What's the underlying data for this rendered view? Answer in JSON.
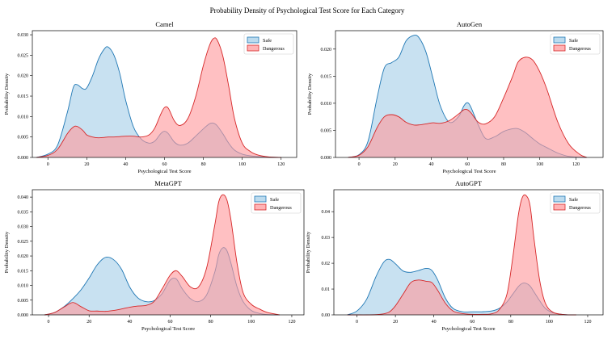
{
  "figure": {
    "title": "Probability Density of Psychological Test Score for Each Category",
    "colors": {
      "safe": "#1f77b4",
      "safe_fill": "#a6cfe8",
      "dangerous": "#d62728",
      "dangerous_fill": "#ff9a9c"
    }
  },
  "chart_data": [
    {
      "type": "area",
      "title": "Camel",
      "xlabel": "Psychological Test Score",
      "ylabel": "Probability Density",
      "xlim": [
        -8,
        128
      ],
      "ylim": [
        0,
        0.031
      ],
      "xticks": [
        0,
        20,
        40,
        60,
        80,
        100,
        120
      ],
      "yticks": [
        0.0,
        0.005,
        0.01,
        0.015,
        0.02,
        0.025,
        0.03
      ],
      "ytick_labels": [
        "0.000",
        "0.005",
        "0.010",
        "0.015",
        "0.020",
        "0.025",
        "0.030"
      ],
      "legend": [
        "Safe",
        "Dangerous"
      ],
      "legend_loc": "top-right",
      "x": [
        -6,
        0,
        5,
        10,
        13,
        15,
        18,
        20,
        23,
        26,
        29,
        31,
        34,
        37,
        40,
        44,
        48,
        52,
        55,
        58,
        60,
        62,
        65,
        68,
        72,
        76,
        80,
        83,
        85,
        87,
        90,
        93,
        96,
        100,
        104,
        108,
        114,
        120
      ],
      "series": [
        {
          "name": "Safe",
          "values": [
            0,
            0.0008,
            0.003,
            0.011,
            0.017,
            0.0178,
            0.0168,
            0.017,
            0.02,
            0.024,
            0.0265,
            0.027,
            0.025,
            0.0205,
            0.014,
            0.0075,
            0.0045,
            0.0035,
            0.004,
            0.0058,
            0.0064,
            0.0058,
            0.0038,
            0.003,
            0.0035,
            0.0052,
            0.007,
            0.0082,
            0.0084,
            0.0078,
            0.0058,
            0.0035,
            0.0018,
            0.0008,
            0.0004,
            0.0002,
            5e-05,
            0
          ]
        },
        {
          "name": "Dangerous",
          "values": [
            0,
            0.0005,
            0.002,
            0.0058,
            0.0074,
            0.0076,
            0.0066,
            0.0055,
            0.005,
            0.0048,
            0.0049,
            0.005,
            0.005,
            0.0051,
            0.0052,
            0.0052,
            0.005,
            0.0055,
            0.0072,
            0.0105,
            0.0122,
            0.012,
            0.009,
            0.0078,
            0.0095,
            0.0148,
            0.0225,
            0.0272,
            0.029,
            0.0288,
            0.0248,
            0.0175,
            0.0095,
            0.0035,
            0.0015,
            0.0006,
            0.0001,
            0
          ]
        }
      ]
    },
    {
      "type": "area",
      "title": "AutoGen",
      "xlabel": "Psychological Test Score",
      "ylabel": "Probability Density",
      "xlim": [
        -13,
        135
      ],
      "ylim": [
        0,
        0.0234
      ],
      "xticks": [
        0,
        20,
        40,
        60,
        80,
        100,
        120
      ],
      "yticks": [
        0.0,
        0.005,
        0.01,
        0.015,
        0.02
      ],
      "ytick_labels": [
        "0.000",
        "0.005",
        "0.010",
        "0.015",
        "0.020"
      ],
      "legend": [
        "Safe",
        "Dangerous"
      ],
      "legend_loc": "top-right",
      "x": [
        -6,
        0,
        5,
        10,
        14,
        18,
        22,
        26,
        30,
        33,
        37,
        41,
        45,
        50,
        55,
        58,
        60,
        62,
        66,
        70,
        75,
        80,
        85,
        88,
        92,
        96,
        100,
        104,
        110,
        116,
        122,
        126
      ],
      "series": [
        {
          "name": "Safe",
          "values": [
            0,
            0.0005,
            0.003,
            0.011,
            0.0165,
            0.0175,
            0.0185,
            0.0215,
            0.0225,
            0.0222,
            0.0195,
            0.0145,
            0.0095,
            0.0065,
            0.0075,
            0.0095,
            0.0101,
            0.0092,
            0.006,
            0.0035,
            0.0038,
            0.0048,
            0.0053,
            0.0053,
            0.0046,
            0.0035,
            0.0025,
            0.0018,
            0.0008,
            0.0002,
            5e-05,
            0
          ]
        },
        {
          "name": "Dangerous",
          "values": [
            0,
            0.0004,
            0.002,
            0.0055,
            0.0075,
            0.0079,
            0.0075,
            0.0065,
            0.006,
            0.006,
            0.0062,
            0.0064,
            0.0063,
            0.0068,
            0.008,
            0.0088,
            0.0088,
            0.0082,
            0.0065,
            0.0062,
            0.0075,
            0.011,
            0.015,
            0.0176,
            0.0185,
            0.018,
            0.0158,
            0.0125,
            0.0065,
            0.0025,
            0.0006,
            0
          ]
        }
      ]
    },
    {
      "type": "area",
      "title": "MetaGPT",
      "xlabel": "Psychological Test Score",
      "ylabel": "Probability Density",
      "xlim": [
        -8,
        126
      ],
      "ylim": [
        0,
        0.0425
      ],
      "xticks": [
        0,
        20,
        40,
        60,
        80,
        100,
        120
      ],
      "yticks": [
        0.0,
        0.005,
        0.01,
        0.015,
        0.02,
        0.025,
        0.03,
        0.035,
        0.04
      ],
      "ytick_labels": [
        "0.000",
        "0.005",
        "0.010",
        "0.015",
        "0.020",
        "0.025",
        "0.030",
        "0.035",
        "0.040"
      ],
      "legend": [
        "Safe",
        "Dangerous"
      ],
      "legend_loc": "top-right",
      "x": [
        -2,
        3,
        8,
        12,
        16,
        20,
        24,
        28,
        32,
        36,
        40,
        44,
        48,
        52,
        56,
        60,
        63,
        66,
        70,
        74,
        78,
        82,
        84,
        86,
        88,
        90,
        93,
        96,
        100,
        104,
        108,
        114
      ],
      "series": [
        {
          "name": "Safe",
          "values": [
            0,
            0.0008,
            0.003,
            0.0055,
            0.0085,
            0.0125,
            0.017,
            0.0195,
            0.0188,
            0.0155,
            0.0095,
            0.0058,
            0.0045,
            0.0048,
            0.0072,
            0.0118,
            0.0122,
            0.0088,
            0.0055,
            0.0045,
            0.0068,
            0.0145,
            0.0205,
            0.0228,
            0.0218,
            0.0175,
            0.0095,
            0.0045,
            0.0015,
            0.0005,
            0.0001,
            0
          ]
        },
        {
          "name": "Dangerous",
          "values": [
            0,
            0.0008,
            0.0028,
            0.0042,
            0.0028,
            0.0014,
            0.0013,
            0.0012,
            0.0015,
            0.002,
            0.0026,
            0.003,
            0.0032,
            0.0045,
            0.0088,
            0.0135,
            0.015,
            0.013,
            0.0095,
            0.0095,
            0.016,
            0.0305,
            0.0385,
            0.0408,
            0.039,
            0.0322,
            0.0175,
            0.0075,
            0.0036,
            0.002,
            0.0008,
            0
          ]
        }
      ]
    },
    {
      "type": "area",
      "title": "AutoGPT",
      "xlabel": "Psychological Test Score",
      "ylabel": "Probability Density",
      "xlim": [
        -12,
        128
      ],
      "ylim": [
        0,
        0.0485
      ],
      "xticks": [
        0,
        20,
        40,
        60,
        80,
        100,
        120
      ],
      "yticks": [
        0.0,
        0.01,
        0.02,
        0.03,
        0.04
      ],
      "ytick_labels": [
        "0.00",
        "0.01",
        "0.02",
        "0.03",
        "0.04"
      ],
      "legend": [
        "Safe",
        "Dangerous"
      ],
      "legend_loc": "top-right",
      "x": [
        -5,
        0,
        5,
        10,
        14,
        17,
        20,
        24,
        28,
        32,
        36,
        39,
        42,
        46,
        50,
        55,
        60,
        65,
        70,
        74,
        78,
        81,
        84,
        86,
        88,
        90,
        92,
        95,
        98,
        102,
        108,
        114
      ],
      "series": [
        {
          "name": "Safe",
          "values": [
            0,
            0.0015,
            0.006,
            0.015,
            0.0205,
            0.0215,
            0.0198,
            0.017,
            0.0165,
            0.0172,
            0.018,
            0.0172,
            0.0135,
            0.0065,
            0.0025,
            0.0012,
            0.0012,
            0.0012,
            0.0015,
            0.0025,
            0.005,
            0.008,
            0.011,
            0.0122,
            0.0122,
            0.0112,
            0.009,
            0.0055,
            0.0025,
            0.0008,
            0.0001,
            0
          ]
        },
        {
          "name": "Dangerous",
          "values": [
            0,
            0,
            0,
            0.0001,
            0.0004,
            0.0012,
            0.0035,
            0.008,
            0.0125,
            0.0135,
            0.013,
            0.0125,
            0.0095,
            0.0045,
            0.0015,
            0.0005,
            0.0002,
            0.0002,
            0.0004,
            0.002,
            0.008,
            0.022,
            0.039,
            0.0455,
            0.0462,
            0.0425,
            0.03,
            0.0135,
            0.0045,
            0.001,
            0.0001,
            0
          ]
        }
      ]
    }
  ]
}
